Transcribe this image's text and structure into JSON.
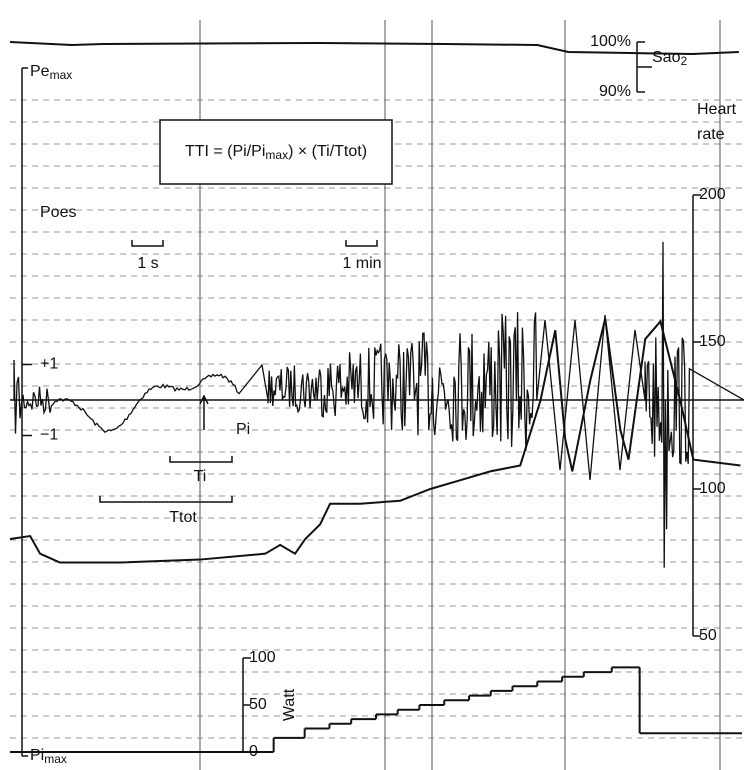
{
  "chart_data": [
    {
      "type": "line",
      "name": "sao2",
      "title_parts": [
        "Sao",
        "2"
      ],
      "x": [
        0,
        2,
        3,
        10,
        14,
        17,
        18,
        20,
        22,
        23.5
      ],
      "values": [
        100,
        99.4,
        99.6,
        99.8,
        99.6,
        99.4,
        98,
        97.8,
        97.6,
        98
      ],
      "xlim": [
        0,
        23.6
      ],
      "ylim": [
        90,
        100
      ],
      "yticks": [
        {
          "value": 100,
          "label": "100%"
        },
        {
          "value": 90,
          "label": "90%"
        }
      ],
      "color": "#111"
    },
    {
      "type": "line",
      "name": "heart-rate",
      "title_lines": [
        "Heart",
        "rate"
      ],
      "x": [
        0,
        0.65,
        0.97,
        1.61,
        3.55,
        6.13,
        8.23,
        8.71,
        9.19,
        9.52,
        10.0,
        10.32,
        11.29,
        12.58,
        13.55,
        14.52,
        15.48,
        16.45,
        17.1,
        17.58,
        17.9,
        18.13,
        18.71,
        19.19,
        19.68,
        19.94,
        20.48,
        20.97,
        21.61,
        22.03,
        23.55
      ],
      "values": [
        83,
        84,
        78,
        75,
        75,
        76,
        78,
        81,
        78,
        83,
        88,
        95,
        95,
        96,
        100,
        103,
        106,
        108,
        130,
        154,
        117,
        106,
        137,
        158,
        120,
        110,
        151,
        157,
        130,
        110,
        108
      ],
      "xlim": [
        0,
        23.6
      ],
      "ylim": [
        50,
        200
      ],
      "yticks": [
        200,
        150,
        100,
        50
      ],
      "color": "#111"
    },
    {
      "type": "step",
      "name": "work-load",
      "ylabel": "Watt",
      "x": [
        0,
        8.5,
        9.5,
        10.3,
        11,
        11.8,
        12.5,
        13.2,
        14,
        14.8,
        15.5,
        16.2,
        17,
        17.8,
        18.5,
        19.4,
        20.3
      ],
      "values": [
        0,
        15,
        25,
        30,
        35,
        40,
        45,
        50,
        55,
        60,
        65,
        70,
        75,
        80,
        85,
        90,
        20
      ],
      "xlim": [
        0,
        23.6
      ],
      "ylim": [
        0,
        100
      ],
      "yticks": [
        100,
        50,
        0
      ],
      "color": "#111"
    }
  ],
  "labels": {
    "pe_max": [
      "Pe",
      "max"
    ],
    "pi_max": [
      "Pi",
      "max"
    ],
    "formula": [
      "TTI = (Pi/Pi",
      "max",
      ") × (Ti/Ttot)"
    ],
    "poes": "Poes",
    "poes_ticks": [
      {
        "value": 1,
        "label": "+1"
      },
      {
        "value": -1,
        "label": "−1"
      }
    ],
    "one_s": "1 s",
    "one_min": "1 min",
    "pi": "Pi",
    "ti": "Ti",
    "ttot": "Ttot"
  }
}
